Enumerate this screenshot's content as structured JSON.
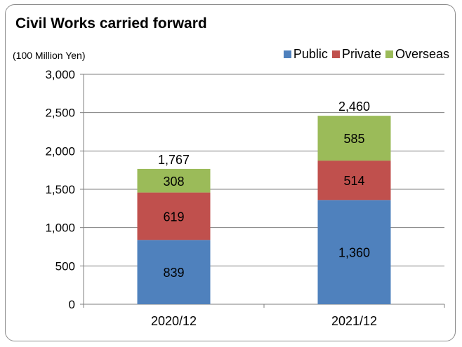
{
  "chart_data": {
    "type": "bar",
    "stacked": true,
    "title": "Civil Works carried forward",
    "unit_label": "(100 Million Yen)",
    "categories": [
      "2020/12",
      "2021/12"
    ],
    "series": [
      {
        "name": "Public",
        "color": "#4f81bd",
        "values": [
          839,
          1360
        ],
        "labels": [
          "839",
          "1,360"
        ]
      },
      {
        "name": "Private",
        "color": "#c0504d",
        "values": [
          619,
          514
        ],
        "labels": [
          "619",
          "514"
        ]
      },
      {
        "name": "Overseas",
        "color": "#9bbb59",
        "values": [
          308,
          585
        ],
        "labels": [
          "308",
          "585"
        ]
      }
    ],
    "totals": [
      1767,
      2460
    ],
    "total_labels": [
      "1,767",
      "2,460"
    ],
    "ylim": [
      0,
      3000
    ],
    "yticks": [
      0,
      500,
      1000,
      1500,
      2000,
      2500,
      3000
    ],
    "ytick_labels": [
      "0",
      "500",
      "1,000",
      "1,500",
      "2,000",
      "2,500",
      "3,000"
    ],
    "grid": true,
    "legend_position": "top-right"
  }
}
